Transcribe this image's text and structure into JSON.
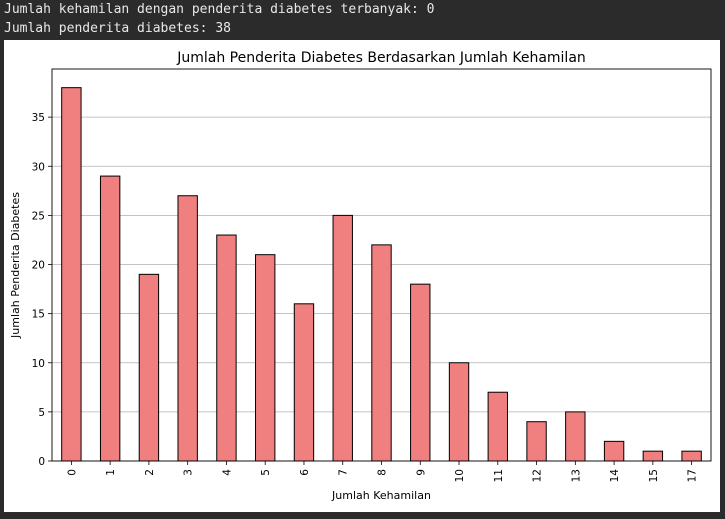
{
  "console": {
    "line1": "Jumlah kehamilan dengan penderita diabetes terbanyak: 0",
    "line2": "Jumlah penderita diabetes: 38"
  },
  "chart_data": {
    "type": "bar",
    "title": "Jumlah Penderita Diabetes Berdasarkan Jumlah Kehamilan",
    "xlabel": "Jumlah Kehamilan",
    "ylabel": "Jumlah Penderita Diabetes",
    "categories": [
      "0",
      "1",
      "2",
      "3",
      "4",
      "5",
      "6",
      "7",
      "8",
      "9",
      "10",
      "11",
      "12",
      "13",
      "14",
      "15",
      "17"
    ],
    "values": [
      38,
      29,
      19,
      27,
      23,
      21,
      16,
      25,
      22,
      18,
      10,
      7,
      4,
      5,
      2,
      1,
      1
    ],
    "ylim": [
      0,
      39.9
    ],
    "yticks": [
      "0",
      "5",
      "10",
      "15",
      "20",
      "25",
      "30",
      "35"
    ],
    "grid": "horizontal",
    "bar_color": "#f08080",
    "edge_color": "#000000"
  }
}
